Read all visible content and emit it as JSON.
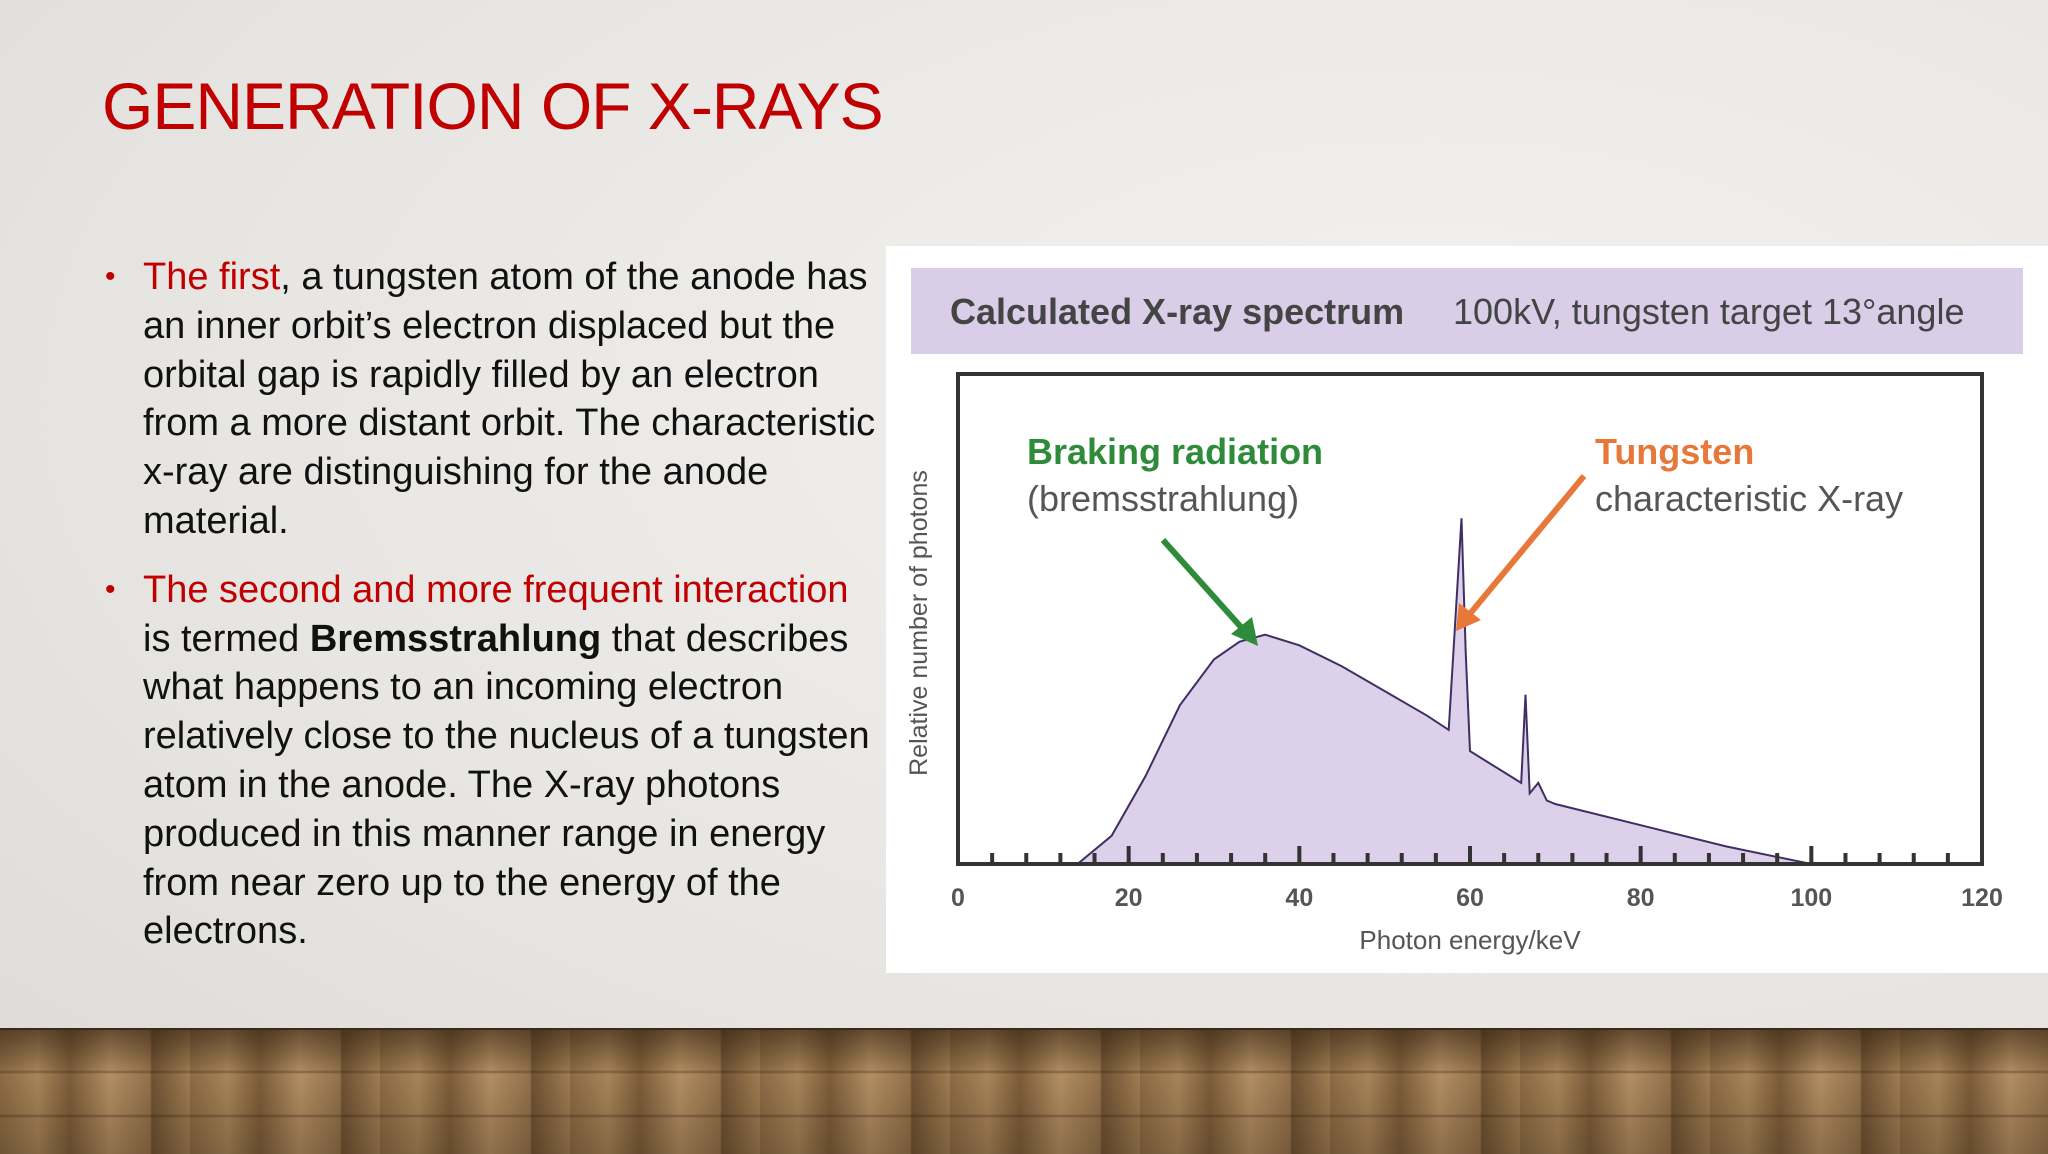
{
  "slide": {
    "title": "GENERATION OF X-RAYS",
    "bullets": [
      {
        "highlight": "The first",
        "text": ", a tungsten atom of the anode has an inner orbit’s electron displaced but the orbital gap is rapidly filled by an electron from a more distant orbit. The characteristic x-ray are distinguishing for the anode material."
      },
      {
        "highlight": "The second and more frequent interaction",
        "text_before_bold": " is termed ",
        "bold": "Bremsstrahlung",
        "text_after_bold": " that describes what happens to an incoming electron relatively close to the nucleus of a tungsten atom in the anode. The X-ray photons produced in this manner range in energy from near zero up to the energy of the electrons."
      }
    ]
  },
  "colors": {
    "title_red": "#c00000",
    "chart_fill": "#dcd0ea",
    "header_band": "#d9cde8",
    "braking_green": "#2e8b3a",
    "tungsten_orange": "#e8773a"
  },
  "chart_data": {
    "type": "area",
    "header_title": "Calculated X-ray spectrum",
    "header_subtitle": "100kV, tungsten target 13°angle",
    "xlabel": "Photon energy/keV",
    "ylabel": "Relative number of photons",
    "xlim": [
      0,
      120
    ],
    "ylim": [
      0,
      1
    ],
    "xticks": [
      0,
      20,
      40,
      60,
      80,
      100,
      120
    ],
    "x": [
      0,
      14,
      18,
      22,
      26,
      30,
      33,
      36,
      40,
      45,
      50,
      55,
      57.5,
      59,
      59.5,
      60,
      66,
      66.5,
      67,
      68,
      69,
      70,
      80,
      90,
      100,
      120
    ],
    "y": [
      0,
      0,
      0.08,
      0.25,
      0.45,
      0.58,
      0.63,
      0.65,
      0.62,
      0.56,
      0.49,
      0.42,
      0.38,
      0.98,
      0.6,
      0.32,
      0.23,
      0.48,
      0.2,
      0.23,
      0.18,
      0.17,
      0.11,
      0.05,
      0,
      0
    ],
    "annotations": [
      {
        "label": "Braking radiation",
        "sublabel": "(bremsstrahlung)",
        "target_x": 36,
        "color": "#2e8b3a"
      },
      {
        "label": "Tungsten",
        "sublabel": "characteristic X-ray",
        "target_x": 59,
        "color": "#e8773a"
      }
    ]
  }
}
